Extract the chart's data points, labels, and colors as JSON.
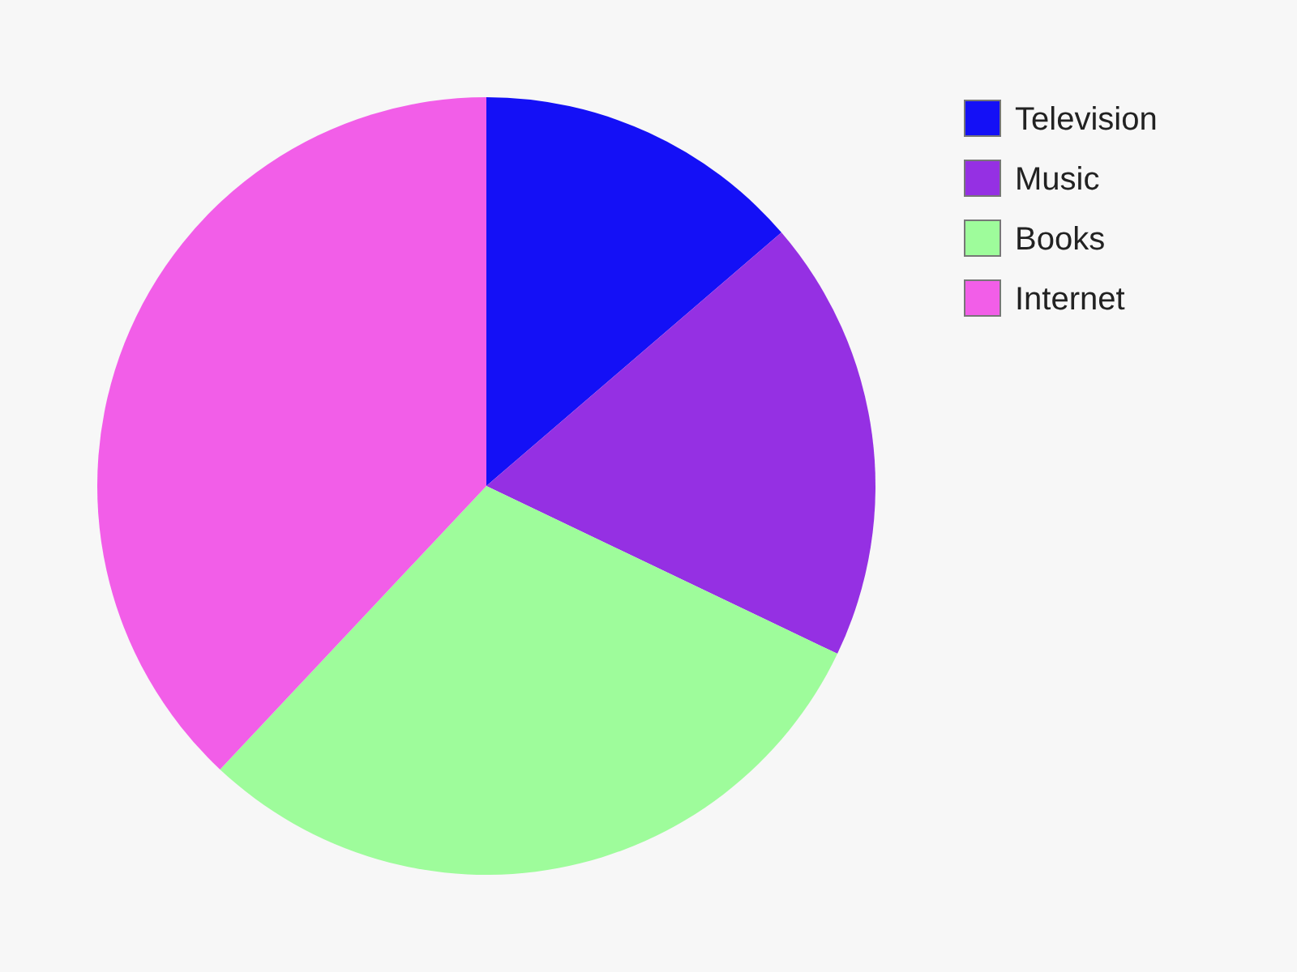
{
  "chart_data": {
    "type": "pie",
    "categories": [
      "Television",
      "Music",
      "Books",
      "Internet"
    ],
    "values": [
      13.7,
      18.4,
      29.9,
      38.0
    ],
    "colors": [
      "#1410f6",
      "#9530e3",
      "#9efc9b",
      "#f25ee8"
    ],
    "legend": "top right"
  }
}
